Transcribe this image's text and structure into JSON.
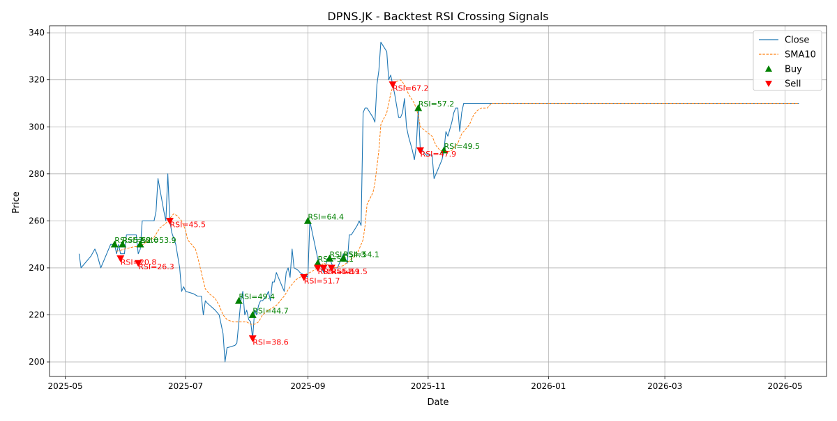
{
  "chart_data": {
    "type": "line",
    "title": "DPNS.JK - Backtest RSI Crossing Signals",
    "xlabel": "Date",
    "ylabel": "Price",
    "xlim": [
      "2025-04-23",
      "2026-05-22"
    ],
    "ylim": [
      193.8,
      343.0
    ],
    "grid": true,
    "legend_position": "top-right",
    "x_ticks": [
      "2025-05",
      "2025-07",
      "2025-09",
      "2025-11",
      "2026-01",
      "2026-03",
      "2026-05"
    ],
    "y_ticks": [
      200,
      220,
      240,
      260,
      280,
      300,
      320,
      340
    ],
    "series": [
      {
        "name": "Close",
        "style": "solid",
        "color": "#1f77b4",
        "points": [
          [
            "2025-05-08",
            246
          ],
          [
            "2025-05-09",
            240
          ],
          [
            "2025-05-14",
            245
          ],
          [
            "2025-05-16",
            248
          ],
          [
            "2025-05-17",
            246
          ],
          [
            "2025-05-19",
            240
          ],
          [
            "2025-05-23",
            248
          ],
          [
            "2025-05-24",
            250
          ],
          [
            "2025-05-26",
            250
          ],
          [
            "2025-05-27",
            246
          ],
          [
            "2025-05-28",
            250
          ],
          [
            "2025-05-29",
            246
          ],
          [
            "2025-05-31",
            246
          ],
          [
            "2025-06-01",
            254
          ],
          [
            "2025-06-06",
            254
          ],
          [
            "2025-06-07",
            246
          ],
          [
            "2025-06-08",
            248
          ],
          [
            "2025-06-09",
            260
          ],
          [
            "2025-06-15",
            260
          ],
          [
            "2025-06-16",
            264
          ],
          [
            "2025-06-17",
            278
          ],
          [
            "2025-06-20",
            264
          ],
          [
            "2025-06-21",
            260
          ],
          [
            "2025-06-22",
            280
          ],
          [
            "2025-06-23",
            260
          ],
          [
            "2025-06-24",
            255
          ],
          [
            "2025-06-26",
            250
          ],
          [
            "2025-06-28",
            240
          ],
          [
            "2025-06-29",
            230
          ],
          [
            "2025-06-30",
            232
          ],
          [
            "2025-07-01",
            230
          ],
          [
            "2025-07-05",
            229
          ],
          [
            "2025-07-07",
            228
          ],
          [
            "2025-07-09",
            228
          ],
          [
            "2025-07-10",
            220
          ],
          [
            "2025-07-11",
            226
          ],
          [
            "2025-07-12",
            225
          ],
          [
            "2025-07-16",
            222
          ],
          [
            "2025-07-18",
            220
          ],
          [
            "2025-07-19",
            216
          ],
          [
            "2025-07-20",
            212
          ],
          [
            "2025-07-21",
            200
          ],
          [
            "2025-07-22",
            206
          ],
          [
            "2025-07-26",
            207
          ],
          [
            "2025-07-27",
            208
          ],
          [
            "2025-07-29",
            226
          ],
          [
            "2025-07-30",
            230
          ],
          [
            "2025-07-31",
            220
          ],
          [
            "2025-08-01",
            222
          ],
          [
            "2025-08-02",
            218
          ],
          [
            "2025-08-03",
            217
          ],
          [
            "2025-08-04",
            210
          ],
          [
            "2025-08-05",
            222
          ],
          [
            "2025-08-06",
            220
          ],
          [
            "2025-08-07",
            224
          ],
          [
            "2025-08-08",
            226
          ],
          [
            "2025-08-09",
            226
          ],
          [
            "2025-08-11",
            228
          ],
          [
            "2025-08-12",
            230
          ],
          [
            "2025-08-13",
            226
          ],
          [
            "2025-08-14",
            234
          ],
          [
            "2025-08-15",
            234
          ],
          [
            "2025-08-16",
            238
          ],
          [
            "2025-08-18",
            234
          ],
          [
            "2025-08-19",
            232
          ],
          [
            "2025-08-20",
            230
          ],
          [
            "2025-08-21",
            238
          ],
          [
            "2025-08-22",
            240
          ],
          [
            "2025-08-23",
            236
          ],
          [
            "2025-08-24",
            248
          ],
          [
            "2025-08-25",
            240
          ],
          [
            "2025-08-27",
            239
          ],
          [
            "2025-08-28",
            238
          ],
          [
            "2025-08-30",
            237
          ],
          [
            "2025-09-01",
            236
          ],
          [
            "2025-09-02",
            260
          ],
          [
            "2025-09-05",
            248
          ],
          [
            "2025-09-06",
            244
          ],
          [
            "2025-09-07",
            242
          ],
          [
            "2025-09-08",
            240
          ],
          [
            "2025-09-09",
            238
          ],
          [
            "2025-09-11",
            244
          ],
          [
            "2025-09-12",
            244
          ],
          [
            "2025-09-13",
            242
          ],
          [
            "2025-09-14",
            240
          ],
          [
            "2025-09-15",
            240
          ],
          [
            "2025-09-16",
            240
          ],
          [
            "2025-09-17",
            242
          ],
          [
            "2025-09-18",
            244
          ],
          [
            "2025-09-19",
            246
          ],
          [
            "2025-09-20",
            244
          ],
          [
            "2025-09-21",
            242
          ],
          [
            "2025-09-22",
            254
          ],
          [
            "2025-09-23",
            254
          ],
          [
            "2025-09-26",
            258
          ],
          [
            "2025-09-27",
            260
          ],
          [
            "2025-09-28",
            258
          ],
          [
            "2025-09-29",
            306
          ],
          [
            "2025-09-30",
            308
          ],
          [
            "2025-10-01",
            308
          ],
          [
            "2025-10-04",
            304
          ],
          [
            "2025-10-05",
            302
          ],
          [
            "2025-10-06",
            318
          ],
          [
            "2025-10-07",
            324
          ],
          [
            "2025-10-08",
            336
          ],
          [
            "2025-10-11",
            332
          ],
          [
            "2025-10-12",
            320
          ],
          [
            "2025-10-13",
            322
          ],
          [
            "2025-10-14",
            318
          ],
          [
            "2025-10-15",
            314
          ],
          [
            "2025-10-17",
            304
          ],
          [
            "2025-10-18",
            304
          ],
          [
            "2025-10-19",
            306
          ],
          [
            "2025-10-20",
            312
          ],
          [
            "2025-10-21",
            300
          ],
          [
            "2025-10-22",
            296
          ],
          [
            "2025-10-24",
            290
          ],
          [
            "2025-10-25",
            286
          ],
          [
            "2025-10-26",
            292
          ],
          [
            "2025-10-27",
            308
          ],
          [
            "2025-10-28",
            290
          ],
          [
            "2025-10-29",
            290
          ],
          [
            "2025-10-31",
            288
          ],
          [
            "2025-11-01",
            288
          ],
          [
            "2025-11-03",
            288
          ],
          [
            "2025-11-04",
            278
          ],
          [
            "2025-11-06",
            282
          ],
          [
            "2025-11-08",
            286
          ],
          [
            "2025-11-09",
            290
          ],
          [
            "2025-11-10",
            298
          ],
          [
            "2025-11-11",
            296
          ],
          [
            "2025-11-13",
            302
          ],
          [
            "2025-11-14",
            306
          ],
          [
            "2025-11-15",
            308
          ],
          [
            "2025-11-16",
            308
          ],
          [
            "2025-11-17",
            298
          ],
          [
            "2025-11-18",
            306
          ],
          [
            "2025-11-19",
            310
          ],
          [
            "2025-11-20",
            310
          ],
          [
            "2025-11-21",
            310
          ],
          [
            "2025-11-29",
            310
          ],
          [
            "2026-05-08",
            310
          ]
        ]
      },
      {
        "name": "SMA10",
        "style": "dashed",
        "color": "#ff7f0e",
        "points": [
          [
            "2025-05-27",
            247
          ],
          [
            "2025-05-31",
            248
          ],
          [
            "2025-06-05",
            249
          ],
          [
            "2025-06-08",
            249
          ],
          [
            "2025-06-11",
            251
          ],
          [
            "2025-06-15",
            253
          ],
          [
            "2025-06-18",
            257
          ],
          [
            "2025-06-21",
            259
          ],
          [
            "2025-06-24",
            262
          ],
          [
            "2025-06-25",
            263
          ],
          [
            "2025-06-27",
            262
          ],
          [
            "2025-06-29",
            260
          ],
          [
            "2025-07-01",
            256
          ],
          [
            "2025-07-02",
            252
          ],
          [
            "2025-07-04",
            250
          ],
          [
            "2025-07-06",
            248
          ],
          [
            "2025-07-07",
            245
          ],
          [
            "2025-07-09",
            238
          ],
          [
            "2025-07-11",
            231
          ],
          [
            "2025-07-13",
            229
          ],
          [
            "2025-07-16",
            227
          ],
          [
            "2025-07-18",
            224
          ],
          [
            "2025-07-20",
            220
          ],
          [
            "2025-07-22",
            218
          ],
          [
            "2025-07-25",
            217
          ],
          [
            "2025-07-29",
            217
          ],
          [
            "2025-08-01",
            217
          ],
          [
            "2025-08-03",
            216
          ],
          [
            "2025-08-05",
            216
          ],
          [
            "2025-08-07",
            217
          ],
          [
            "2025-08-09",
            220
          ],
          [
            "2025-08-12",
            222
          ],
          [
            "2025-08-16",
            224
          ],
          [
            "2025-08-20",
            228
          ],
          [
            "2025-08-23",
            232
          ],
          [
            "2025-08-26",
            235
          ],
          [
            "2025-08-30",
            237
          ],
          [
            "2025-09-02",
            238
          ],
          [
            "2025-09-06",
            240
          ],
          [
            "2025-09-09",
            242
          ],
          [
            "2025-09-12",
            241
          ],
          [
            "2025-09-15",
            240
          ],
          [
            "2025-09-19",
            241
          ],
          [
            "2025-09-22",
            243
          ],
          [
            "2025-09-26",
            246
          ],
          [
            "2025-09-29",
            252
          ],
          [
            "2025-09-30",
            258
          ],
          [
            "2025-10-01",
            267
          ],
          [
            "2025-10-04",
            272
          ],
          [
            "2025-10-05",
            276
          ],
          [
            "2025-10-07",
            290
          ],
          [
            "2025-10-08",
            301
          ],
          [
            "2025-10-11",
            306
          ],
          [
            "2025-10-12",
            310
          ],
          [
            "2025-10-13",
            314
          ],
          [
            "2025-10-14",
            317
          ],
          [
            "2025-10-15",
            319
          ],
          [
            "2025-10-18",
            320
          ],
          [
            "2025-10-20",
            318
          ],
          [
            "2025-10-22",
            314
          ],
          [
            "2025-10-25",
            310
          ],
          [
            "2025-10-27",
            305
          ],
          [
            "2025-10-28",
            300
          ],
          [
            "2025-10-31",
            298
          ],
          [
            "2025-11-03",
            296
          ],
          [
            "2025-11-05",
            292
          ],
          [
            "2025-11-07",
            290
          ],
          [
            "2025-11-10",
            289
          ],
          [
            "2025-11-13",
            290
          ],
          [
            "2025-11-16",
            293
          ],
          [
            "2025-11-18",
            297
          ],
          [
            "2025-11-20",
            299
          ],
          [
            "2025-11-22",
            301
          ],
          [
            "2025-11-24",
            305
          ],
          [
            "2025-11-26",
            307
          ],
          [
            "2025-11-28",
            308
          ],
          [
            "2025-12-01",
            308
          ],
          [
            "2025-12-03",
            310
          ],
          [
            "2026-05-08",
            310
          ]
        ]
      }
    ],
    "buy_signals": [
      {
        "date": "2025-05-26",
        "price": 250,
        "label": "RSI=52.0"
      },
      {
        "date": "2025-05-30",
        "price": 250,
        "label": "RSI=52.0"
      },
      {
        "date": "2025-06-08",
        "price": 250,
        "label": "RSI=53.9"
      },
      {
        "date": "2025-07-28",
        "price": 226,
        "label": "RSI=49.4"
      },
      {
        "date": "2025-08-04",
        "price": 220,
        "label": "RSI=44.7"
      },
      {
        "date": "2025-09-01",
        "price": 260,
        "label": "RSI=64.4"
      },
      {
        "date": "2025-09-06",
        "price": 242,
        "label": "RSI=52.1"
      },
      {
        "date": "2025-09-12",
        "price": 244,
        "label": "RSI=54.3"
      },
      {
        "date": "2025-09-19",
        "price": 244,
        "label": "RSI=54.1"
      },
      {
        "date": "2025-10-27",
        "price": 308,
        "label": "RSI=57.2"
      },
      {
        "date": "2025-11-09",
        "price": 290,
        "label": "RSI=49.5"
      }
    ],
    "sell_signals": [
      {
        "date": "2025-05-29",
        "price": 244,
        "label": "RSI=20.8"
      },
      {
        "date": "2025-06-07",
        "price": 242,
        "label": "RSI=26.3"
      },
      {
        "date": "2025-06-23",
        "price": 260,
        "label": "RSI=45.5"
      },
      {
        "date": "2025-08-04",
        "price": 210,
        "label": "RSI=38.6"
      },
      {
        "date": "2025-08-30",
        "price": 236,
        "label": "RSI=51.7"
      },
      {
        "date": "2025-09-06",
        "price": 240,
        "label": "RSI=51.8"
      },
      {
        "date": "2025-09-09",
        "price": 240,
        "label": "RSI=51.9"
      },
      {
        "date": "2025-09-13",
        "price": 240,
        "label": "RSI=51.5"
      },
      {
        "date": "2025-10-14",
        "price": 318,
        "label": "RSI=67.2"
      },
      {
        "date": "2025-10-28",
        "price": 290,
        "label": "RSI=47.9"
      }
    ],
    "legend": [
      {
        "label": "Close",
        "kind": "line",
        "color": "#1f77b4"
      },
      {
        "label": "SMA10",
        "kind": "dashed",
        "color": "#ff7f0e"
      },
      {
        "label": "Buy",
        "kind": "triangle-up",
        "color": "#008000"
      },
      {
        "label": "Sell",
        "kind": "triangle-down",
        "color": "#ff0000"
      }
    ]
  }
}
